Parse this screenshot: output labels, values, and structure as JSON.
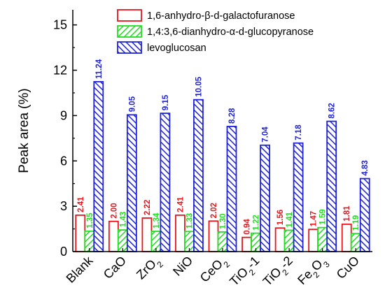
{
  "chart_data": {
    "type": "bar",
    "title": "",
    "xlabel": "",
    "ylabel": "Peak area (%)",
    "ylim": [
      0,
      16
    ],
    "yticks": [
      0,
      3,
      6,
      9,
      12,
      15
    ],
    "grid": false,
    "legend_position": "top-right",
    "categories": [
      {
        "base": "Blank"
      },
      {
        "base": "CaO"
      },
      {
        "base": "ZrO",
        "sub": "2"
      },
      {
        "base": "NiO"
      },
      {
        "base": "CeO",
        "sub": "2"
      },
      {
        "base": "TiO",
        "sub": "2",
        "suffix": "-1"
      },
      {
        "base": "TiO",
        "sub": "2",
        "suffix": "-2"
      },
      {
        "base": "Fe",
        "sub": "2",
        "mid": "O",
        "sub2": "3"
      },
      {
        "base": "CuO"
      }
    ],
    "series": [
      {
        "name": "1,6-anhydro-β-d-galactofuranose",
        "color": "#e8141c",
        "pattern": "none",
        "values": [
          2.41,
          2.0,
          2.22,
          2.41,
          2.02,
          0.94,
          1.56,
          1.47,
          1.81
        ],
        "labels": [
          "2.41",
          "2.00",
          "2.22",
          "2.41",
          "2.02",
          "0.94",
          "1.56",
          "1.47",
          "1.81"
        ]
      },
      {
        "name": "1,4:3,6-dianhydro-α-d-glucopyranose",
        "color": "#22dd22",
        "pattern": "diag-right",
        "values": [
          1.35,
          1.43,
          1.34,
          1.33,
          1.3,
          1.22,
          1.41,
          1.59,
          1.19
        ],
        "labels": [
          "1.35",
          "1.43",
          "1.34",
          "1.33",
          "1.30",
          "1.22",
          "1.41",
          "1.59",
          "1.19"
        ]
      },
      {
        "name": "levoglucosan",
        "color": "#1e22dc",
        "pattern": "diag-left",
        "values": [
          11.24,
          9.05,
          9.15,
          10.05,
          8.28,
          7.04,
          7.18,
          8.62,
          4.83
        ],
        "labels": [
          "11.24",
          "9.05",
          "9.15",
          "10.05",
          "8.28",
          "7.04",
          "7.18",
          "8.62",
          "4.83"
        ]
      }
    ]
  }
}
